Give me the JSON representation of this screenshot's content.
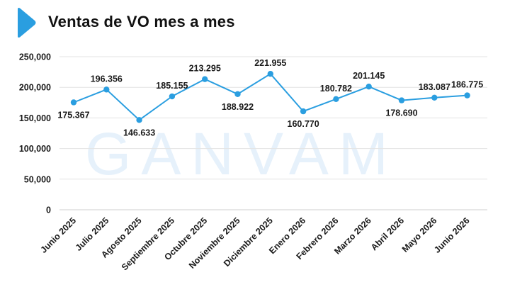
{
  "header": {
    "title": "Ventas de VO mes a mes",
    "marker_icon": "chevron-right-icon",
    "marker_color": "#2a9ee0"
  },
  "watermark": {
    "text": "GANVAM",
    "color": "#e6f1fb"
  },
  "chart_data": {
    "type": "line",
    "title": "Ventas de VO mes a mes",
    "categories": [
      "Junio 2025",
      "Julio 2025",
      "Agosto 2025",
      "Septiembre 2025",
      "Octubre 2025",
      "Noviembre 2025",
      "Diciembre 2025",
      "Enero 2026",
      "Febrero 2026",
      "Marzo 2026",
      "Abril 2026",
      "Mayo 2026",
      "Junio 2026"
    ],
    "values": [
      175367,
      196356,
      146633,
      185155,
      213295,
      188922,
      221955,
      160770,
      180782,
      201145,
      178690,
      183087,
      186775
    ],
    "data_labels": [
      "175.367",
      "196.356",
      "146.633",
      "185.155",
      "213.295",
      "188.922",
      "221.955",
      "160.770",
      "180.782",
      "201.145",
      "178.690",
      "183.087",
      "186.775"
    ],
    "label_positions": [
      "below",
      "above",
      "below",
      "above",
      "above",
      "below",
      "above",
      "below",
      "above",
      "above",
      "below",
      "above",
      "above"
    ],
    "yticks": [
      0,
      50000,
      100000,
      150000,
      200000,
      250000
    ],
    "ytick_labels": [
      "0",
      "50,000",
      "100,000",
      "150,000",
      "200,000",
      "250,000"
    ],
    "ylim": [
      0,
      250000
    ],
    "xlabel": "",
    "ylabel": "",
    "grid": "horizontal",
    "legend": "none",
    "line_color": "#2a9ee0",
    "grid_color": "#e3e3e3"
  }
}
